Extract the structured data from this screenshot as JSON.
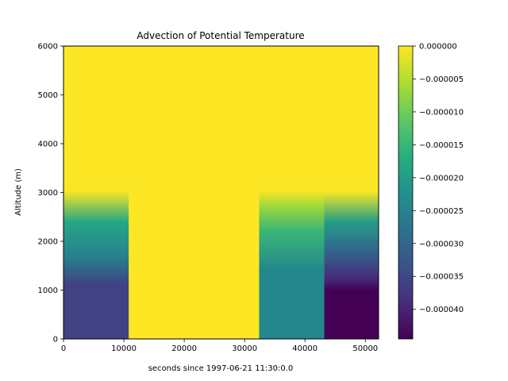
{
  "chart_data": {
    "type": "heatmap",
    "title": "Advection of Potential Temperature",
    "xlabel": "seconds since 1997-06-21 11:30:0.0",
    "ylabel": "Altitude (m)",
    "xlim": [
      0,
      52200
    ],
    "ylim": [
      0,
      6000
    ],
    "x_ticks": [
      "0",
      "10000",
      "20000",
      "30000",
      "40000",
      "50000"
    ],
    "y_ticks": [
      "0",
      "1000",
      "2000",
      "3000",
      "4000",
      "5000",
      "6000"
    ],
    "colormap": "viridis",
    "color_range": [
      -4.45e-05,
      0.0
    ],
    "colorbar_ticks": [
      "0.000000",
      "−0.000005",
      "−0.000010",
      "−0.000015",
      "−0.000020",
      "−0.000025",
      "−0.000030",
      "−0.000035",
      "−0.000040"
    ],
    "segments": [
      {
        "x_start": 0,
        "x_end": 10800,
        "profile": [
          [
            0,
            -3.6e-05
          ],
          [
            1100,
            -3.6e-05
          ],
          [
            1700,
            -2.5e-05
          ],
          [
            2400,
            -1.8e-05
          ],
          [
            3000,
            -1e-06
          ],
          [
            3050,
            0.0
          ],
          [
            6000,
            0.0
          ]
        ]
      },
      {
        "x_start": 10800,
        "x_end": 32400,
        "profile": [
          [
            0,
            0.0
          ],
          [
            6000,
            0.0
          ]
        ]
      },
      {
        "x_start": 32400,
        "x_end": 43200,
        "profile": [
          [
            0,
            -2.4e-05
          ],
          [
            1400,
            -2.4e-05
          ],
          [
            2200,
            -1.5e-05
          ],
          [
            2700,
            -7e-06
          ],
          [
            3000,
            -1e-06
          ],
          [
            3050,
            0.0
          ],
          [
            6000,
            0.0
          ]
        ]
      },
      {
        "x_start": 43200,
        "x_end": 52200,
        "profile": [
          [
            0,
            -4.45e-05
          ],
          [
            1000,
            -4.45e-05
          ],
          [
            1250,
            -3.9e-05
          ],
          [
            1800,
            -3e-05
          ],
          [
            2400,
            -2e-05
          ],
          [
            3000,
            -1e-06
          ],
          [
            3050,
            0.0
          ],
          [
            6000,
            0.0
          ]
        ]
      }
    ],
    "grid": false
  }
}
